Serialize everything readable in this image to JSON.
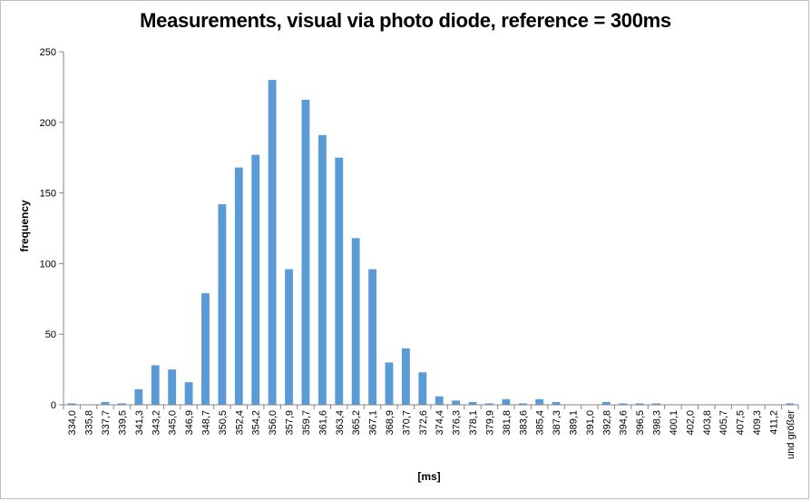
{
  "chart_data": {
    "type": "bar",
    "title": "Measurements, visual via photo diode, reference = 300ms",
    "xlabel": "[ms]",
    "ylabel": "frequency",
    "ylim": [
      0,
      250
    ],
    "yticks": [
      0,
      50,
      100,
      150,
      200,
      250
    ],
    "grid": false,
    "legend": "none",
    "bar_color": "#5b9bd5",
    "categories": [
      "334,0",
      "335,8",
      "337,7",
      "339,5",
      "341,3",
      "343,2",
      "345,0",
      "346,9",
      "348,7",
      "350,5",
      "352,4",
      "354,2",
      "356,0",
      "357,9",
      "359,7",
      "361,6",
      "363,4",
      "365,2",
      "367,1",
      "368,9",
      "370,7",
      "372,6",
      "374,4",
      "376,3",
      "378,1",
      "379,9",
      "381,8",
      "383,6",
      "385,4",
      "387,3",
      "389,1",
      "391,0",
      "392,8",
      "394,6",
      "396,5",
      "398,3",
      "400,1",
      "402,0",
      "403,8",
      "405,7",
      "407,5",
      "409,3",
      "411,2",
      "und größer"
    ],
    "values": [
      1,
      0,
      2,
      1,
      11,
      28,
      25,
      16,
      79,
      142,
      168,
      177,
      230,
      96,
      216,
      191,
      175,
      118,
      96,
      30,
      40,
      23,
      6,
      3,
      2,
      1,
      4,
      1,
      4,
      2,
      0,
      0,
      2,
      1,
      1,
      1,
      0,
      0,
      0,
      0,
      0,
      0,
      0,
      1
    ]
  }
}
